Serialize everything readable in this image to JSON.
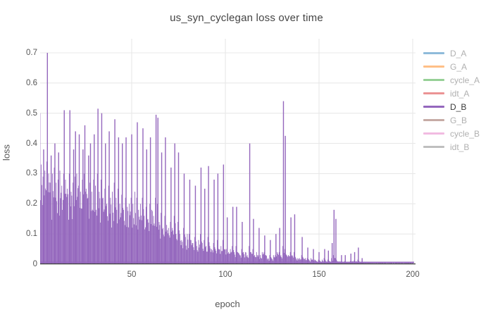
{
  "figure": {
    "title": "us_syn_cyclegan loss over time"
  },
  "chart_data": {
    "type": "line",
    "title": "us_syn_cyclegan loss over time",
    "xlabel": "epoch",
    "ylabel": "loss",
    "xlim": [
      1,
      201
    ],
    "ylim": [
      0,
      0.742
    ],
    "grid": true,
    "legend_position": "right",
    "xticks": [
      50,
      100,
      150,
      200
    ],
    "yticks": [
      0,
      0.1,
      0.2,
      0.3,
      0.4,
      0.5,
      0.6,
      0.7
    ],
    "x_tick_labels": [
      "50",
      "100",
      "150",
      "200"
    ],
    "y_tick_labels": [
      "0",
      "0.1",
      "0.2",
      "0.3",
      "0.4",
      "0.5",
      "0.6",
      "0.7"
    ],
    "colors": {
      "grid": "#e8e8e8",
      "zeroline": "#3c3c3c",
      "active_trace": "#9467bd"
    },
    "series": [
      {
        "name": "D_A",
        "color": "#1f77b4",
        "visible": false
      },
      {
        "name": "G_A",
        "color": "#ff7f0e",
        "visible": false
      },
      {
        "name": "cycle_A",
        "color": "#2ca02c",
        "visible": false
      },
      {
        "name": "idt_A",
        "color": "#d62728",
        "visible": false
      },
      {
        "name": "D_B",
        "color": "#9467bd",
        "visible": true,
        "x_unit": "epoch",
        "baseline": 0.006,
        "band_top_per_epoch": [
          0.3,
          0.33,
          0.29,
          0.31,
          0.34,
          0.3,
          0.27,
          0.3,
          0.32,
          0.27,
          0.28,
          0.31,
          0.26,
          0.3,
          0.28,
          0.25,
          0.3,
          0.24,
          0.27,
          0.29,
          0.3,
          0.26,
          0.24,
          0.28,
          0.3,
          0.25,
          0.22,
          0.27,
          0.24,
          0.28,
          0.26,
          0.3,
          0.24,
          0.28,
          0.22,
          0.25,
          0.2,
          0.26,
          0.22,
          0.24,
          0.27,
          0.22,
          0.25,
          0.2,
          0.23,
          0.18,
          0.22,
          0.19,
          0.2,
          0.22,
          0.2,
          0.24,
          0.22,
          0.18,
          0.2,
          0.22,
          0.16,
          0.19,
          0.15,
          0.2,
          0.18,
          0.16,
          0.22,
          0.2,
          0.14,
          0.17,
          0.12,
          0.16,
          0.13,
          0.12,
          0.14,
          0.12,
          0.16,
          0.1,
          0.14,
          0.1,
          0.08,
          0.12,
          0.09,
          0.1,
          0.1,
          0.08,
          0.07,
          0.09,
          0.06,
          0.08,
          0.1,
          0.07,
          0.08,
          0.06,
          0.09,
          0.06,
          0.05,
          0.07,
          0.05,
          0.08,
          0.05,
          0.06,
          0.08,
          0.05,
          0.05,
          0.04,
          0.05,
          0.06,
          0.04,
          0.06,
          0.04,
          0.03,
          0.05,
          0.04,
          0.04,
          0.03,
          0.06,
          0.04,
          0.05,
          0.03,
          0.04,
          0.03,
          0.03,
          0.04,
          0.04,
          0.03,
          0.02,
          0.03,
          0.02,
          0.03,
          0.03,
          0.04,
          0.04,
          0.03,
          0.06,
          0.05,
          0.03,
          0.03,
          0.04,
          0.03,
          0.04,
          0.02,
          0.02,
          0.02,
          0.03,
          0.02,
          0.02,
          0.02,
          0.015,
          0.02,
          0.015,
          0.015,
          0.01,
          0.015,
          0.01,
          0.015,
          0.02,
          0.01,
          0.015,
          0.01,
          0.02,
          0.03,
          0.02,
          0.01,
          0.01,
          0.01,
          0.008,
          0.01,
          0.008,
          0.008,
          0.01,
          0.01,
          0.012,
          0.01,
          0.015,
          0.008,
          0.008,
          0.006,
          0.006,
          0.005,
          0.005,
          0.005,
          0.005,
          0.005,
          0.005,
          0.005,
          0.005,
          0.005,
          0.005,
          0.005,
          0.005,
          0.005,
          0.005,
          0.005,
          0.005,
          0.005,
          0.005,
          0.005,
          0.005,
          0.005,
          0.005,
          0.005,
          0.005,
          0.005
        ],
        "spikes": [
          [
            1,
            0.5
          ],
          [
            3,
            0.38
          ],
          [
            5,
            0.7
          ],
          [
            7,
            0.36
          ],
          [
            9,
            0.4
          ],
          [
            11,
            0.37
          ],
          [
            14,
            0.51
          ],
          [
            17,
            0.51
          ],
          [
            19,
            0.38
          ],
          [
            20,
            0.44
          ],
          [
            22,
            0.43
          ],
          [
            24,
            0.38
          ],
          [
            25,
            0.46
          ],
          [
            27,
            0.36
          ],
          [
            28,
            0.4
          ],
          [
            30,
            0.43
          ],
          [
            32,
            0.515
          ],
          [
            34,
            0.5
          ],
          [
            36,
            0.4
          ],
          [
            38,
            0.44
          ],
          [
            41,
            0.48
          ],
          [
            43,
            0.42
          ],
          [
            45,
            0.4
          ],
          [
            47,
            0.42
          ],
          [
            50,
            0.43
          ],
          [
            53,
            0.47
          ],
          [
            56,
            0.45
          ],
          [
            58,
            0.38
          ],
          [
            60,
            0.42
          ],
          [
            63,
            0.495
          ],
          [
            64,
            0.485
          ],
          [
            66,
            0.37
          ],
          [
            68,
            0.42
          ],
          [
            71,
            0.32
          ],
          [
            73,
            0.4
          ],
          [
            75,
            0.37
          ],
          [
            78,
            0.3
          ],
          [
            81,
            0.28
          ],
          [
            84,
            0.26
          ],
          [
            87,
            0.32
          ],
          [
            89,
            0.25
          ],
          [
            91,
            0.325
          ],
          [
            94,
            0.28
          ],
          [
            96,
            0.3
          ],
          [
            99,
            0.33
          ],
          [
            101,
            0.155
          ],
          [
            104,
            0.19
          ],
          [
            106,
            0.19
          ],
          [
            109,
            0.14
          ],
          [
            113,
            0.4
          ],
          [
            115,
            0.15
          ],
          [
            118,
            0.12
          ],
          [
            121,
            0.095
          ],
          [
            124,
            0.08
          ],
          [
            127,
            0.1
          ],
          [
            129,
            0.12
          ],
          [
            131,
            0.54
          ],
          [
            132,
            0.425
          ],
          [
            135,
            0.155
          ],
          [
            137,
            0.165
          ],
          [
            141,
            0.09
          ],
          [
            144,
            0.055
          ],
          [
            147,
            0.05
          ],
          [
            150,
            0.04
          ],
          [
            153,
            0.05
          ],
          [
            155,
            0.045
          ],
          [
            157,
            0.07
          ],
          [
            158,
            0.18
          ],
          [
            159,
            0.15
          ],
          [
            162,
            0.03
          ],
          [
            164,
            0.03
          ],
          [
            167,
            0.035
          ],
          [
            169,
            0.04
          ],
          [
            171,
            0.055
          ],
          [
            173,
            0.02
          ]
        ]
      },
      {
        "name": "G_B",
        "color": "#8c564b",
        "visible": false
      },
      {
        "name": "cycle_B",
        "color": "#e377c2",
        "visible": false
      },
      {
        "name": "idt_B",
        "color": "#7f7f7f",
        "visible": false
      }
    ]
  }
}
